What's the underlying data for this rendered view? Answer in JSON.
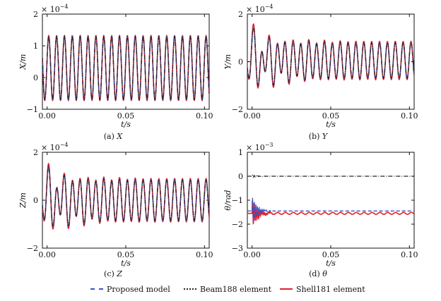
{
  "chart_data": [
    {
      "type": "line",
      "panel_label": "(a)",
      "panel_var": "X",
      "xlabel": "t/s",
      "ylabel": "X/m",
      "exponent_label": "× 10",
      "exponent_power": "−4",
      "xlim": [
        -0.003,
        0.103
      ],
      "ylim": [
        -1,
        2
      ],
      "xticks": [
        "0.00",
        "0.05",
        "0.10"
      ],
      "xtick_values": [
        0,
        0.05,
        0.1
      ],
      "yticks": [
        "2",
        "1",
        "0",
        "−1"
      ],
      "ytick_values": [
        2,
        1,
        0,
        -1
      ],
      "signal": {
        "offset": 0.3,
        "amplitude": 1.0,
        "frequency_hz": 200,
        "decay": 0,
        "transient": 0
      },
      "series": [
        {
          "style": "proposed",
          "values_note": "",
          "offset": 0.3,
          "amplitude": 1.0
        },
        {
          "style": "beam",
          "offset": 0.3,
          "amplitude": 1.0
        },
        {
          "style": "shell",
          "offset": 0.3,
          "amplitude": 1.02
        }
      ]
    },
    {
      "type": "line",
      "panel_label": "(b)",
      "panel_var": "Y",
      "xlabel": "t/s",
      "ylabel": "Y/m",
      "exponent_label": "× 10",
      "exponent_power": "−4",
      "xlim": [
        -0.003,
        0.103
      ],
      "ylim": [
        -2,
        2
      ],
      "xticks": [
        "0.00",
        "0.05",
        "0.10"
      ],
      "xtick_values": [
        0,
        0.05,
        0.1
      ],
      "yticks": [
        "2",
        "0",
        "−2"
      ],
      "ytick_values": [
        2,
        0,
        -2
      ],
      "signal": {
        "offset": 0.05,
        "amplitude": 0.75,
        "frequency_hz": 200,
        "decay": 0,
        "transient": 0.7
      },
      "series": [
        {
          "style": "proposed",
          "offset": 0.05,
          "amplitude": 0.75
        },
        {
          "style": "beam",
          "offset": 0.05,
          "amplitude": 0.75
        },
        {
          "style": "shell",
          "offset": 0.05,
          "amplitude": 0.8
        }
      ]
    },
    {
      "type": "line",
      "panel_label": "(c)",
      "panel_var": "Z",
      "xlabel": "t/s",
      "ylabel": "Z/m",
      "exponent_label": "× 10",
      "exponent_power": "−4",
      "xlim": [
        -0.003,
        0.103
      ],
      "ylim": [
        -2,
        2
      ],
      "xticks": [
        "0.00",
        "0.05",
        "0.10"
      ],
      "xtick_values": [
        0,
        0.05,
        0.1
      ],
      "yticks": [
        "2",
        "0",
        "−2"
      ],
      "ytick_values": [
        2,
        0,
        -2
      ],
      "signal": {
        "offset": 0.0,
        "amplitude": 0.85,
        "frequency_hz": 200,
        "decay": 0,
        "transient": 0.6
      },
      "series": [
        {
          "style": "proposed",
          "offset": 0.0,
          "amplitude": 0.85
        },
        {
          "style": "beam",
          "offset": 0.0,
          "amplitude": 0.85
        },
        {
          "style": "shell",
          "offset": 0.0,
          "amplitude": 0.9
        }
      ]
    },
    {
      "type": "line",
      "panel_label": "(d)",
      "panel_var": "θ",
      "xlabel": "t/s",
      "ylabel": "θ/rad",
      "exponent_label": "× 10",
      "exponent_power": "−3",
      "xlim": [
        -0.003,
        0.103
      ],
      "ylim": [
        -3,
        1
      ],
      "xticks": [
        "0.00",
        "0.05",
        "0.10"
      ],
      "xtick_values": [
        0,
        0.05,
        0.1
      ],
      "yticks": [
        "1",
        "0",
        "−1",
        "−2",
        "−3"
      ],
      "ytick_values": [
        1,
        0,
        -1,
        -2,
        -3
      ],
      "series": [
        {
          "style": "proposed",
          "level": -1.45
        },
        {
          "style": "beam",
          "level": 0.0
        },
        {
          "style": "shell",
          "level": -1.55
        }
      ]
    }
  ],
  "legend": {
    "items": [
      {
        "label": "Proposed model",
        "color": "#3355cc",
        "style": "dashed"
      },
      {
        "label": "Beam188 element",
        "color": "#222222",
        "style": "dashdot"
      },
      {
        "label": "Shell181 element",
        "color": "#e0202a",
        "style": "solid"
      }
    ]
  },
  "colors": {
    "proposed": "#3355cc",
    "beam": "#222222",
    "shell": "#e0202a",
    "axis": "#111111"
  }
}
